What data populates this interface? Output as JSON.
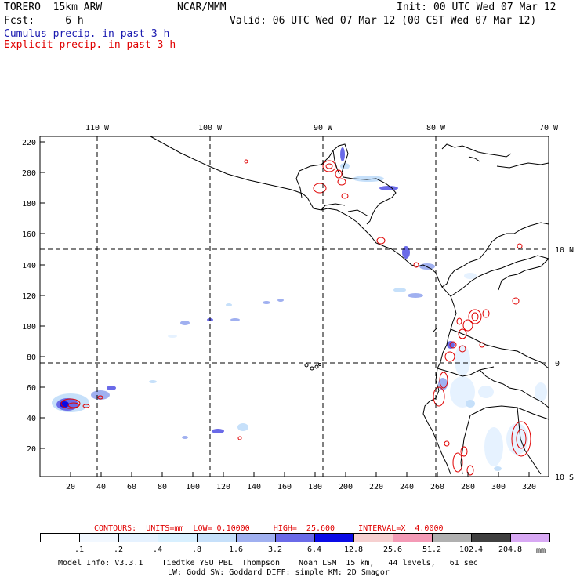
{
  "header": {
    "model": "TORERO  15km ARW",
    "org": "NCAR/MMM",
    "init": "Init: 00 UTC Wed 07 Mar 12",
    "fcst": "Fcst:     6 h",
    "valid": "Valid: 06 UTC Wed 07 Mar 12 (00 CST Wed 07 Mar 12)",
    "legend_cumulus": "Cumulus precip. in past 3 h",
    "legend_explicit": "Explicit precip. in past 3 h"
  },
  "map": {
    "lon_labels": [
      "110 W",
      "100 W",
      "90 W",
      "80 W",
      "70 W"
    ],
    "lat_labels": [
      "10 N",
      "0",
      "10 S"
    ],
    "y_ticks": [
      "220",
      "200",
      "180",
      "160",
      "140",
      "120",
      "100",
      "80",
      "60",
      "40",
      "20"
    ],
    "x_ticks": [
      "20",
      "40",
      "60",
      "80",
      "100",
      "120",
      "140",
      "160",
      "180",
      "200",
      "220",
      "240",
      "260",
      "280",
      "300",
      "320"
    ]
  },
  "contours": {
    "label": "CONTOURS:  UNITS=mm  LOW= 0.10000     HIGH=  25.600     INTERVAL=X  4.0000"
  },
  "colorbar": {
    "colors": [
      "#ffffff",
      "#f2f8ff",
      "#e6f2ff",
      "#d8f0ff",
      "#c6e0fa",
      "#a0b0f0",
      "#6a6ae8",
      "#0a0ae6",
      "#f6d0d0",
      "#f49ab6",
      "#b0b0b0",
      "#404040",
      "#d8a8f4"
    ],
    "labels": [
      ".1",
      ".2",
      ".4",
      ".8",
      "1.6",
      "3.2",
      "6.4",
      "12.8",
      "25.6",
      "51.2",
      "102.4",
      "204.8"
    ],
    "units": "mm"
  },
  "footer": {
    "line1": "Model Info: V3.3.1    Tiedtke YSU PBL  Thompson    Noah LSM  15 km,   44 levels,   61 sec",
    "line2": "LW: Godd SW: Goddard DIFF: simple KM: 2D Smagor"
  }
}
